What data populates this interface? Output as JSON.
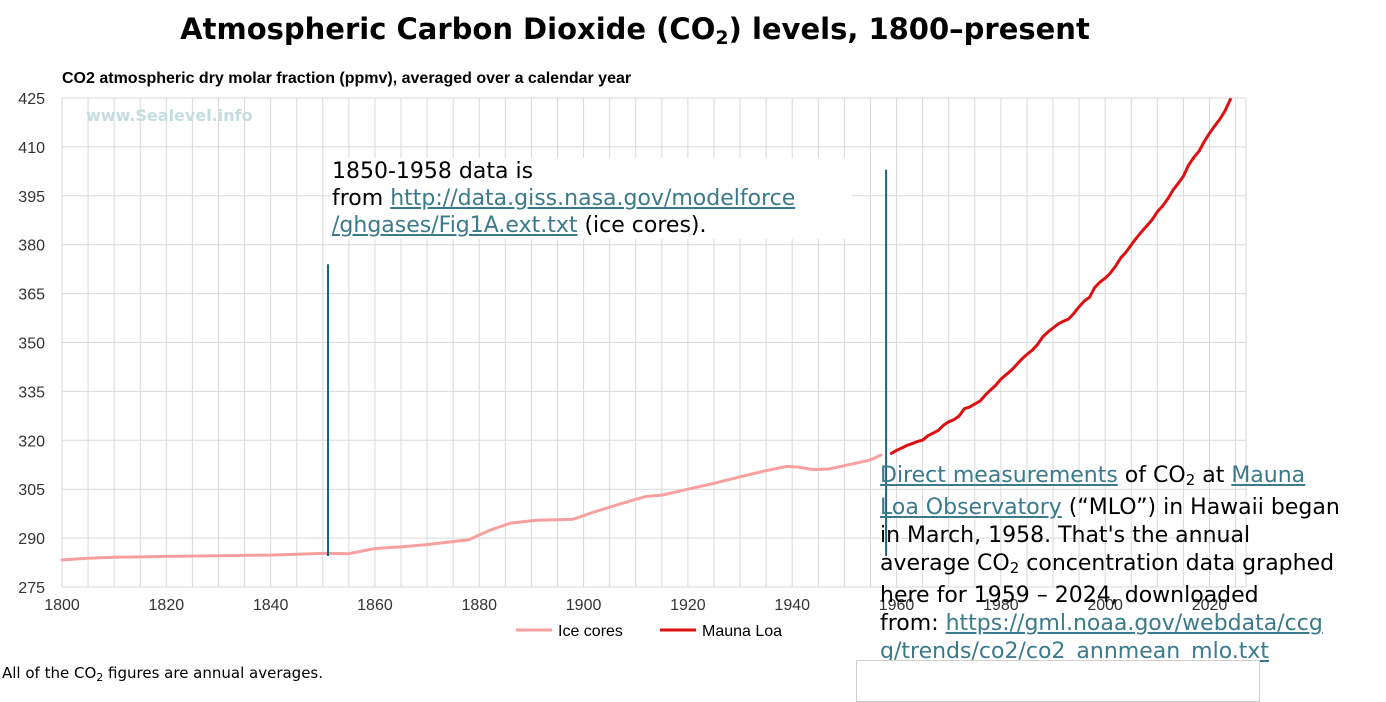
{
  "page": {
    "title_main": "Atmospheric Carbon Dioxide (CO",
    "title_sub": "2",
    "title_tail": ") levels, 1800–present"
  },
  "chart_data": {
    "type": "line",
    "subtitle": "CO2 atmospheric dry molar fraction (ppmv), averaged over a calendar year",
    "watermark": "www.Sealevel.info",
    "xlim": [
      1800,
      2027
    ],
    "ylim": [
      275,
      425
    ],
    "x_ticks": [
      "1800",
      "1820",
      "1840",
      "1860",
      "1880",
      "1900",
      "1920",
      "1940",
      "1960",
      "1980",
      "2000",
      "2020"
    ],
    "y_ticks": [
      "275",
      "290",
      "305",
      "320",
      "335",
      "350",
      "365",
      "380",
      "395",
      "410",
      "425"
    ],
    "grid": true,
    "legend_position": "bottom-center",
    "series": [
      {
        "name": "Ice cores",
        "color": "#f8a0a0",
        "x": [
          1800,
          1805,
          1810,
          1820,
          1830,
          1840,
          1850,
          1855,
          1860,
          1865,
          1870,
          1878,
          1882,
          1886,
          1891,
          1898,
          1902,
          1907,
          1912,
          1915,
          1920,
          1925,
          1930,
          1935,
          1939,
          1941,
          1944,
          1947,
          1950,
          1955,
          1957
        ],
        "values": [
          283.3,
          283.8,
          284.1,
          284.4,
          284.6,
          284.8,
          285.3,
          285.2,
          286.8,
          287.3,
          288.0,
          289.5,
          292.4,
          294.6,
          295.5,
          295.8,
          298.0,
          300.5,
          302.8,
          303.2,
          305.0,
          306.8,
          308.8,
          310.7,
          312.0,
          311.8,
          311.0,
          311.2,
          312.2,
          314.0,
          315.5
        ]
      },
      {
        "name": "Mauna Loa",
        "color": "#dd1111",
        "x": [
          1959,
          1960,
          1961,
          1962,
          1963,
          1964,
          1965,
          1966,
          1967,
          1968,
          1969,
          1970,
          1971,
          1972,
          1973,
          1974,
          1975,
          1976,
          1977,
          1978,
          1979,
          1980,
          1981,
          1982,
          1983,
          1984,
          1985,
          1986,
          1987,
          1988,
          1989,
          1990,
          1991,
          1992,
          1993,
          1994,
          1995,
          1996,
          1997,
          1998,
          1999,
          2000,
          2001,
          2002,
          2003,
          2004,
          2005,
          2006,
          2007,
          2008,
          2009,
          2010,
          2011,
          2012,
          2013,
          2014,
          2015,
          2016,
          2017,
          2018,
          2019,
          2020,
          2021,
          2022,
          2023,
          2024
        ],
        "values": [
          315.98,
          316.91,
          317.64,
          318.45,
          318.99,
          319.62,
          320.04,
          321.37,
          322.18,
          323.05,
          324.62,
          325.68,
          326.32,
          327.46,
          329.68,
          330.19,
          331.12,
          332.03,
          333.84,
          335.41,
          336.84,
          338.76,
          340.12,
          341.48,
          343.15,
          344.87,
          346.35,
          347.61,
          349.31,
          351.69,
          353.2,
          354.45,
          355.7,
          356.54,
          357.21,
          358.96,
          360.97,
          362.74,
          363.88,
          366.84,
          368.54,
          369.71,
          371.32,
          373.45,
          375.98,
          377.7,
          379.98,
          382.09,
          384.02,
          385.83,
          387.64,
          390.1,
          391.85,
          394.06,
          396.74,
          398.81,
          401.01,
          404.41,
          406.76,
          408.72,
          411.65,
          414.21,
          416.41,
          418.53,
          421.08,
          424.61
        ]
      }
    ],
    "markers": [
      {
        "x": 1851,
        "y_top": 374
      },
      {
        "x": 1958,
        "y_top": 403
      }
    ]
  },
  "annotations": {
    "ice_note": {
      "line1": "1850-1958 data is",
      "prefix": "from ",
      "link_part1": "http://data.giss.nasa.gov/modelforce",
      "link_part2": "/ghgases/Fig1A.ext.txt",
      "suffix": " (ice cores)."
    },
    "mlo_note": {
      "link1": "Direct measurements",
      "text1": " of CO",
      "sub1": "2",
      "text2": " at ",
      "link2a": "Mauna",
      "link2b": "Loa Observatory",
      "text3": " (“MLO”) in Hawaii began",
      "line3": "in March, 1958. That's the annual",
      "text4": "average CO",
      "sub2": "2",
      "text5": " concentration data graphed",
      "line5": "here for 1959 – 2024, downloaded",
      "text6": "from: ",
      "link3a": "https://gml.noaa.gov/webdata/ccg",
      "link3b": "g/trends/co2/co2_annmean_mlo.txt"
    }
  },
  "footnote": {
    "text1": "All of the CO",
    "sub": "2",
    "text2": " figures are annual averages."
  }
}
